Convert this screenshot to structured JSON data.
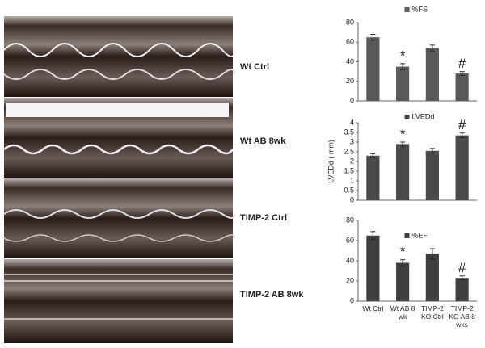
{
  "image_labels": [
    "Wt Ctrl",
    "Wt AB 8wk",
    "TIMP-2 Ctrl",
    "TIMP-2 AB 8wk"
  ],
  "chart_data": [
    {
      "type": "bar",
      "categories": [
        null,
        null,
        null,
        null
      ],
      "series": [
        {
          "name": "%FS",
          "color": "#5a5a5a",
          "values": [
            65,
            35,
            54,
            28
          ],
          "errors": [
            3,
            3,
            3,
            2
          ]
        }
      ],
      "bar_annotations": [
        null,
        "*",
        null,
        "#"
      ],
      "ylim": [
        0,
        80
      ],
      "yticks": [
        0,
        20,
        40,
        60,
        80
      ],
      "grid": false
    },
    {
      "type": "bar",
      "categories": [
        null,
        null,
        null,
        null
      ],
      "y_label": "LVEDd ( mm)",
      "series": [
        {
          "name": "LVEDd",
          "color": "#4a4a4a",
          "values": [
            2.3,
            2.9,
            2.55,
            3.35
          ],
          "errors": [
            0.1,
            0.1,
            0.12,
            0.12
          ]
        }
      ],
      "bar_annotations": [
        null,
        "*",
        null,
        "#"
      ],
      "ylim": [
        0,
        4
      ],
      "yticks": [
        0,
        0.5,
        1,
        1.5,
        2,
        2.5,
        3,
        3.5,
        4
      ],
      "grid": false
    },
    {
      "type": "bar",
      "categories": [
        "Wt Ctrl",
        "Wt AB 8 wk",
        "TIMP-2 KO Ctrl",
        "TIMP-2 KO AB 8 wks"
      ],
      "series": [
        {
          "name": "%EF",
          "color": "#3f3f3f",
          "values": [
            65,
            38,
            47,
            23
          ],
          "errors": [
            4,
            3,
            5,
            2
          ]
        }
      ],
      "bar_annotations": [
        null,
        "*",
        null,
        "#"
      ],
      "ylim": [
        0,
        80
      ],
      "yticks": [
        0,
        20,
        40,
        60,
        80
      ],
      "grid": false
    }
  ]
}
